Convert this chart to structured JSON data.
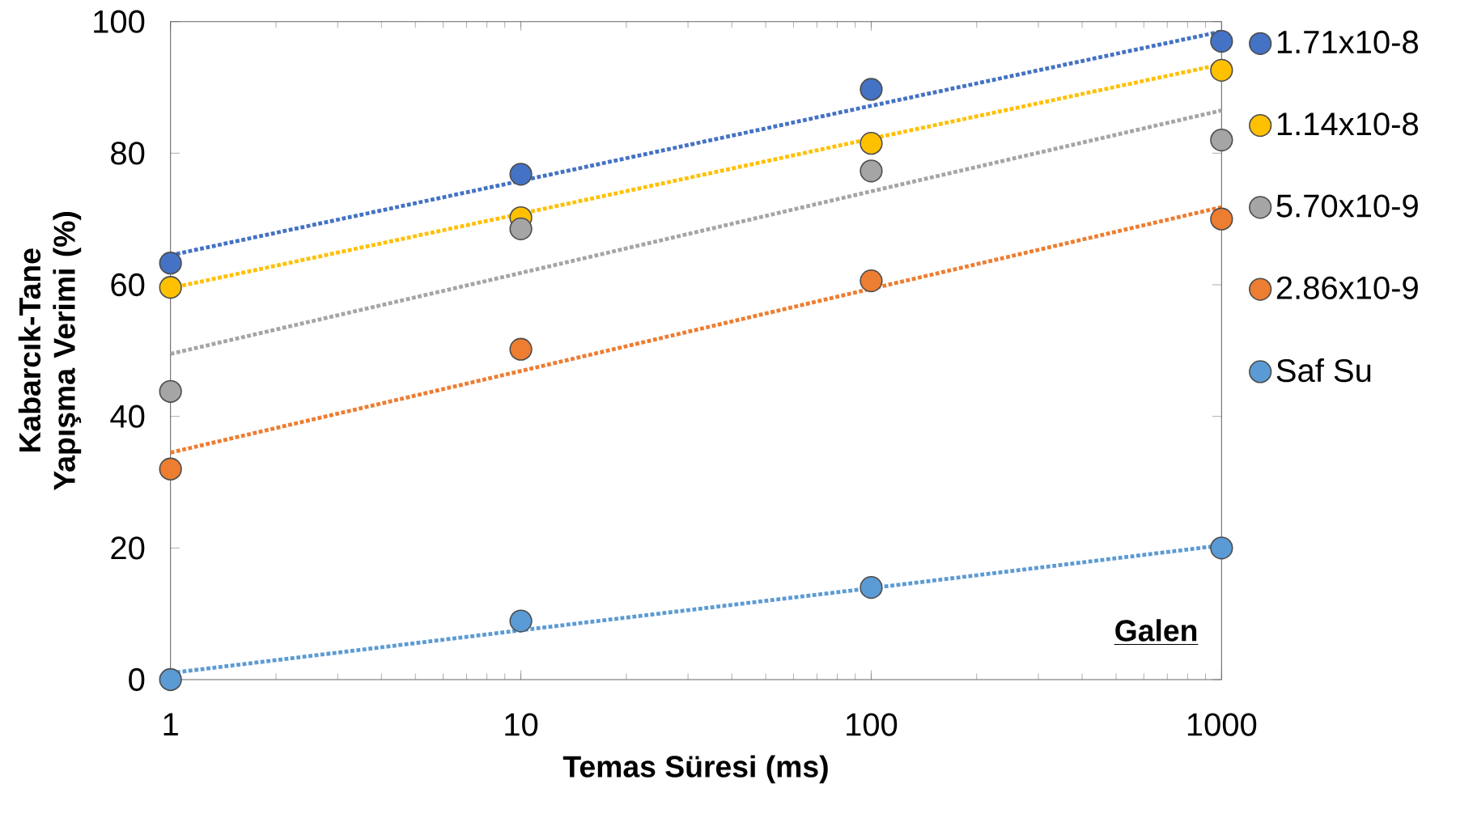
{
  "chart_data": {
    "type": "scatter",
    "xlabel": "Temas Süresi (ms)",
    "ylabel": "Kabarcık-Tane Yapışma Verimi (%)",
    "log": "x",
    "xlim": [
      1,
      1000
    ],
    "xticks": [
      1,
      10,
      100,
      1000
    ],
    "ylim": [
      0,
      100
    ],
    "yticks": [
      0,
      20,
      40,
      60,
      80,
      100
    ],
    "grid": false,
    "legend": "right",
    "marker": "circle",
    "annotations": [
      "Galen"
    ],
    "x": [
      1,
      10,
      100,
      1000
    ],
    "series": [
      {
        "name": "1.71x10-8",
        "color": "#4472c4",
        "values": [
          63.3,
          76.8,
          89.7,
          97.0
        ]
      },
      {
        "name": "1.14x10-8",
        "color": "#ffc000",
        "values": [
          59.6,
          70.2,
          81.5,
          92.6
        ]
      },
      {
        "name": "5.70x10-9",
        "color": "#a5a5a5",
        "values": [
          43.8,
          68.5,
          77.3,
          82.0
        ]
      },
      {
        "name": "2.86x10-9",
        "color": "#ed7d31",
        "values": [
          32.0,
          50.2,
          60.6,
          70.0
        ]
      },
      {
        "name": "Saf Su",
        "color": "#5b9bd5",
        "values": [
          0,
          8.9,
          14.0,
          20.0
        ]
      },
      {
        "type": "line",
        "color": "#4472c4",
        "values": [
          64.5,
          75.8,
          87.2,
          98.5
        ],
        "marker": "none",
        "line_style": "dotted"
      },
      {
        "type": "line",
        "color": "#ffc000",
        "values": [
          59.5,
          70.8,
          82.2,
          93.5
        ],
        "marker": "none",
        "line_style": "dotted"
      },
      {
        "type": "line",
        "color": "#a5a5a5",
        "values": [
          49.5,
          61.8,
          74.2,
          86.5
        ],
        "marker": "none",
        "line_style": "dotted"
      },
      {
        "type": "line",
        "color": "#ed7d31",
        "values": [
          34.5,
          46.9,
          59.4,
          71.8
        ],
        "marker": "none",
        "line_style": "dotted"
      },
      {
        "type": "line",
        "color": "#5b9bd5",
        "values": [
          1.0,
          7.5,
          13.9,
          20.4
        ],
        "marker": "none",
        "line_style": "dotted"
      }
    ]
  }
}
